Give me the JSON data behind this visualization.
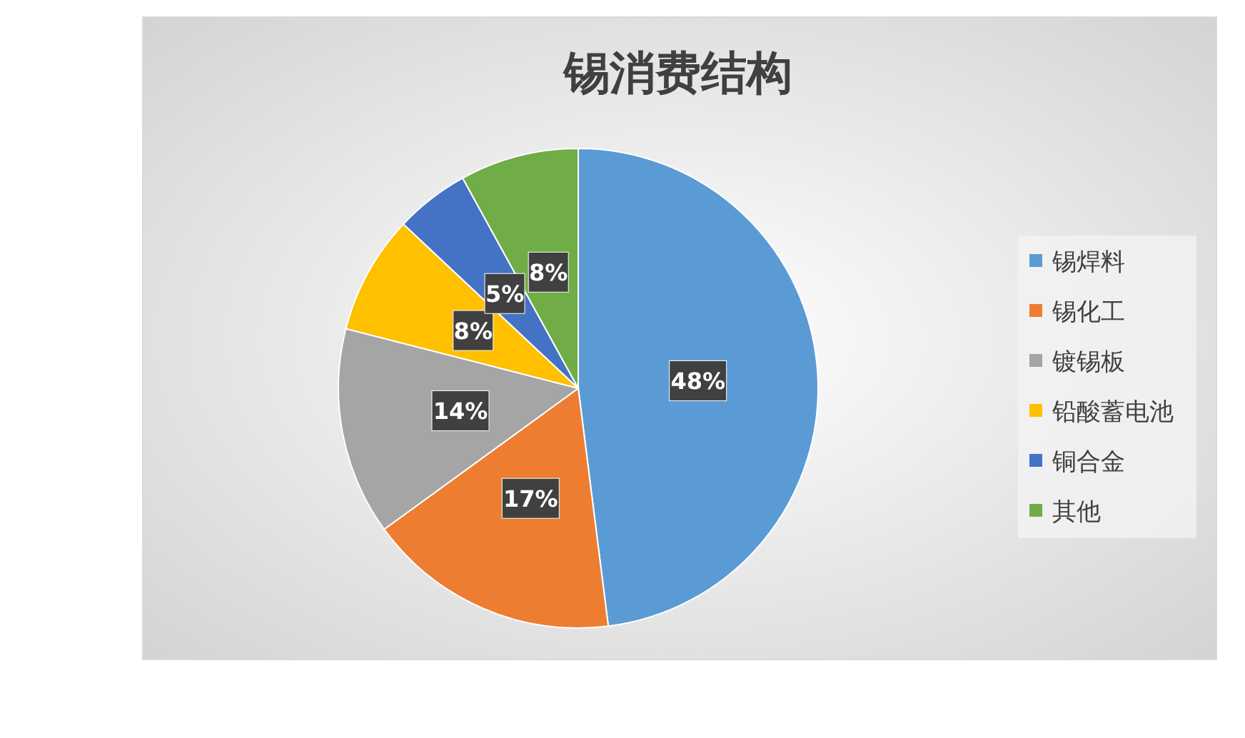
{
  "chart_data": {
    "type": "pie",
    "title": "锡消费结构",
    "categories": [
      "锡焊料",
      "锡化工",
      "镀锡板",
      "铅酸蓄电池",
      "铜合金",
      "其他"
    ],
    "values": [
      48,
      17,
      14,
      8,
      5,
      8
    ],
    "colors": [
      "#5b9bd5",
      "#ed7d31",
      "#a5a5a5",
      "#ffc000",
      "#4472c4",
      "#70ad47"
    ],
    "value_labels": [
      "48%",
      "17%",
      "14%",
      "8%",
      "5%",
      "8%"
    ],
    "legend": "right"
  }
}
